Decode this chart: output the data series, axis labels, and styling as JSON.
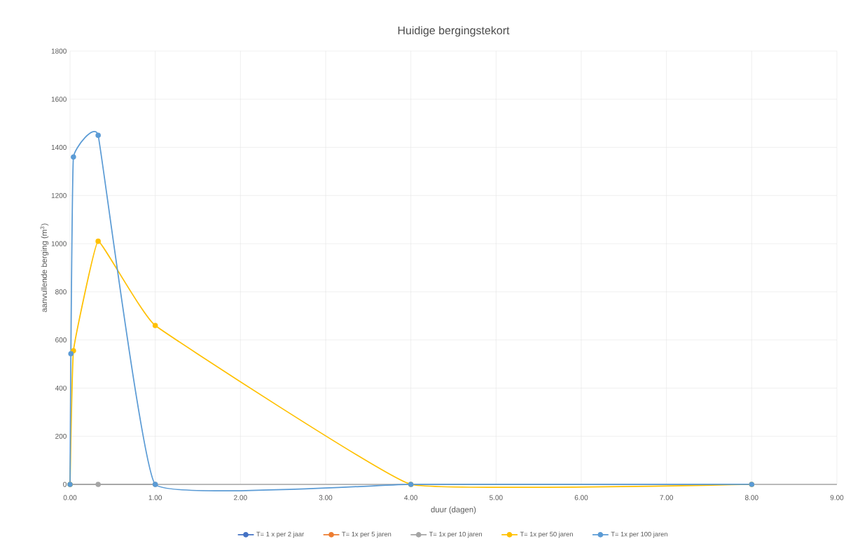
{
  "chart_data": {
    "type": "line",
    "title": "Huidige bergingstekort",
    "xlabel": "duur (dagen)",
    "ylabel": "aanvullende berging (m$^{3}$)",
    "xlim": [
      0,
      9
    ],
    "ylim": [
      0,
      1800
    ],
    "xticks": [
      {
        "value": 0,
        "label": "0.00"
      },
      {
        "value": 1,
        "label": "1.00"
      },
      {
        "value": 2,
        "label": "2.00"
      },
      {
        "value": 3,
        "label": "3.00"
      },
      {
        "value": 4,
        "label": "4.00"
      },
      {
        "value": 5,
        "label": "5.00"
      },
      {
        "value": 6,
        "label": "6.00"
      },
      {
        "value": 7,
        "label": "7.00"
      },
      {
        "value": 8,
        "label": "8.00"
      },
      {
        "value": 9,
        "label": "9.00"
      }
    ],
    "yticks": [
      0,
      200,
      400,
      600,
      800,
      1000,
      1200,
      1400,
      1600,
      1800
    ],
    "grid": true,
    "legend": "bottom",
    "marker": "circle",
    "line_style": "solid",
    "series": [
      {
        "name": "T= 1 x per 2 jaar",
        "color": "#4472c4",
        "values": [
          null
        ]
      },
      {
        "name": "T=  1x per 5 jaren",
        "color": "#ed7d31",
        "values": [
          null
        ]
      },
      {
        "name": "T=  1x per 10 jaren",
        "color": "#a5a5a5",
        "x": [
          0,
          0.33,
          1
        ],
        "values": [
          0,
          0,
          0
        ]
      },
      {
        "name": "T=  1x per 50 jaren",
        "color": "#ffc000",
        "x": [
          0,
          0.04,
          0.33,
          1,
          4,
          8
        ],
        "values": [
          0,
          555,
          1010,
          660,
          0,
          0
        ]
      },
      {
        "name": "T=  1x per 100 jaren",
        "color": "#5b9bd5",
        "x": [
          0,
          0.01,
          0.04,
          0.33,
          1,
          4,
          8
        ],
        "values": [
          0,
          543,
          1360,
          1450,
          0,
          0,
          0
        ]
      }
    ]
  }
}
